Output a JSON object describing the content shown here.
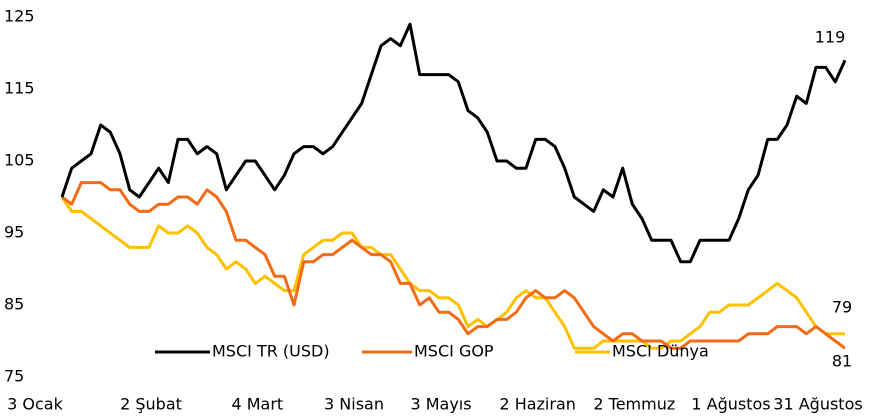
{
  "chart_data": {
    "type": "line",
    "categories": [
      "3 Ocak",
      null,
      null,
      null,
      null,
      null,
      null,
      null,
      null,
      null,
      null,
      null,
      "2 Şubat",
      null,
      null,
      null,
      null,
      null,
      null,
      null,
      null,
      null,
      null,
      "4 Mart",
      null,
      null,
      null,
      null,
      null,
      null,
      null,
      null,
      null,
      "3 Nisan",
      null,
      null,
      null,
      null,
      null,
      null,
      null,
      null,
      "3 Mayıs",
      null,
      null,
      null,
      null,
      null,
      null,
      null,
      null,
      null,
      "2 Haziran",
      null,
      null,
      null,
      null,
      null,
      null,
      null,
      null,
      null,
      "2 Temmuz",
      null,
      null,
      null,
      null,
      null,
      null,
      null,
      null,
      null,
      "1 Ağustos",
      null,
      null,
      null,
      null,
      null,
      null,
      null,
      null,
      "31 Ağustos"
    ],
    "series": [
      {
        "name": "MSCI TR (USD)",
        "color": "#000000",
        "values": [
          100,
          104,
          105,
          106,
          110,
          109,
          106,
          101,
          100,
          102,
          104,
          102,
          108,
          108,
          106,
          107,
          106,
          101,
          103,
          105,
          105,
          103,
          101,
          103,
          106,
          107,
          107,
          106,
          107,
          109,
          111,
          113,
          117,
          121,
          122,
          121,
          124,
          117,
          117,
          117,
          117,
          116,
          112,
          111,
          109,
          105,
          105,
          104,
          104,
          108,
          108,
          107,
          104,
          100,
          99,
          98,
          101,
          100,
          104,
          99,
          97,
          94,
          94,
          94,
          91,
          91,
          94,
          94,
          94,
          94,
          97,
          101,
          103,
          108,
          108,
          110,
          114,
          113,
          118,
          118,
          116,
          119
        ]
      },
      {
        "name": "MSCI GOP",
        "color": "#f26b15",
        "values": [
          100,
          99,
          102,
          102,
          102,
          101,
          101,
          99,
          98,
          98,
          99,
          99,
          100,
          100,
          99,
          101,
          100,
          98,
          94,
          94,
          93,
          92,
          89,
          89,
          85,
          91,
          91,
          92,
          92,
          93,
          94,
          93,
          92,
          92,
          91,
          88,
          88,
          85,
          86,
          84,
          84,
          83,
          81,
          82,
          82,
          83,
          83,
          84,
          86,
          87,
          86,
          86,
          87,
          86,
          84,
          82,
          81,
          80,
          81,
          81,
          80,
          80,
          80,
          79,
          79,
          80,
          80,
          80,
          80,
          80,
          80,
          81,
          81,
          81,
          82,
          82,
          82,
          81,
          82,
          81,
          80,
          79
        ]
      },
      {
        "name": "MSCI Dünya",
        "color": "#ffc000",
        "values": [
          100,
          98,
          98,
          97,
          96,
          95,
          94,
          93,
          93,
          93,
          96,
          95,
          95,
          96,
          95,
          93,
          92,
          90,
          91,
          90,
          88,
          89,
          88,
          87,
          87,
          92,
          93,
          94,
          94,
          95,
          95,
          93,
          93,
          92,
          92,
          90,
          88,
          87,
          87,
          86,
          86,
          85,
          82,
          83,
          82,
          83,
          84,
          86,
          87,
          86,
          86,
          84,
          82,
          79,
          79,
          79,
          80,
          80,
          80,
          80,
          80,
          79,
          79,
          80,
          80,
          81,
          82,
          84,
          84,
          85,
          85,
          85,
          86,
          87,
          88,
          87,
          86,
          84,
          82,
          81,
          81,
          81
        ]
      }
    ],
    "ylim": [
      75,
      125
    ],
    "yticks": [
      75,
      85,
      95,
      105,
      115,
      125
    ],
    "grid": false,
    "legend": "bottom"
  }
}
